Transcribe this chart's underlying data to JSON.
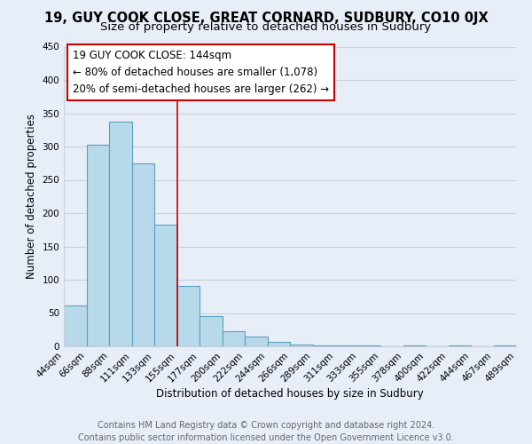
{
  "title": "19, GUY COOK CLOSE, GREAT CORNARD, SUDBURY, CO10 0JX",
  "subtitle": "Size of property relative to detached houses in Sudbury",
  "xlabel": "Distribution of detached houses by size in Sudbury",
  "ylabel": "Number of detached properties",
  "bar_values": [
    62,
    303,
    338,
    275,
    183,
    91,
    45,
    23,
    15,
    7,
    3,
    2,
    1,
    1,
    0,
    1,
    0,
    1,
    0,
    1
  ],
  "bar_labels": [
    "44sqm",
    "66sqm",
    "88sqm",
    "111sqm",
    "133sqm",
    "155sqm",
    "177sqm",
    "200sqm",
    "222sqm",
    "244sqm",
    "266sqm",
    "289sqm",
    "311sqm",
    "333sqm",
    "355sqm",
    "378sqm",
    "400sqm",
    "422sqm",
    "444sqm",
    "467sqm",
    "489sqm"
  ],
  "bar_color": "#b8d9ea",
  "bar_edge_color": "#5a9fc0",
  "vline_color": "#cc0000",
  "annotation_title": "19 GUY COOK CLOSE: 144sqm",
  "annotation_line1": "← 80% of detached houses are smaller (1,078)",
  "annotation_line2": "20% of semi-detached houses are larger (262) →",
  "annotation_box_color": "#ffffff",
  "annotation_border_color": "#cc0000",
  "ylim": [
    0,
    450
  ],
  "yticks": [
    0,
    50,
    100,
    150,
    200,
    250,
    300,
    350,
    400,
    450
  ],
  "footer_line1": "Contains HM Land Registry data © Crown copyright and database right 2024.",
  "footer_line2": "Contains public sector information licensed under the Open Government Licence v3.0.",
  "bg_color": "#e8eef8",
  "plot_bg_color": "#e8eef8",
  "grid_color": "#c8d0dc",
  "title_fontsize": 10.5,
  "subtitle_fontsize": 9.5,
  "axis_label_fontsize": 8.5,
  "tick_fontsize": 7.5,
  "annotation_fontsize": 8.5,
  "footer_fontsize": 7.0
}
